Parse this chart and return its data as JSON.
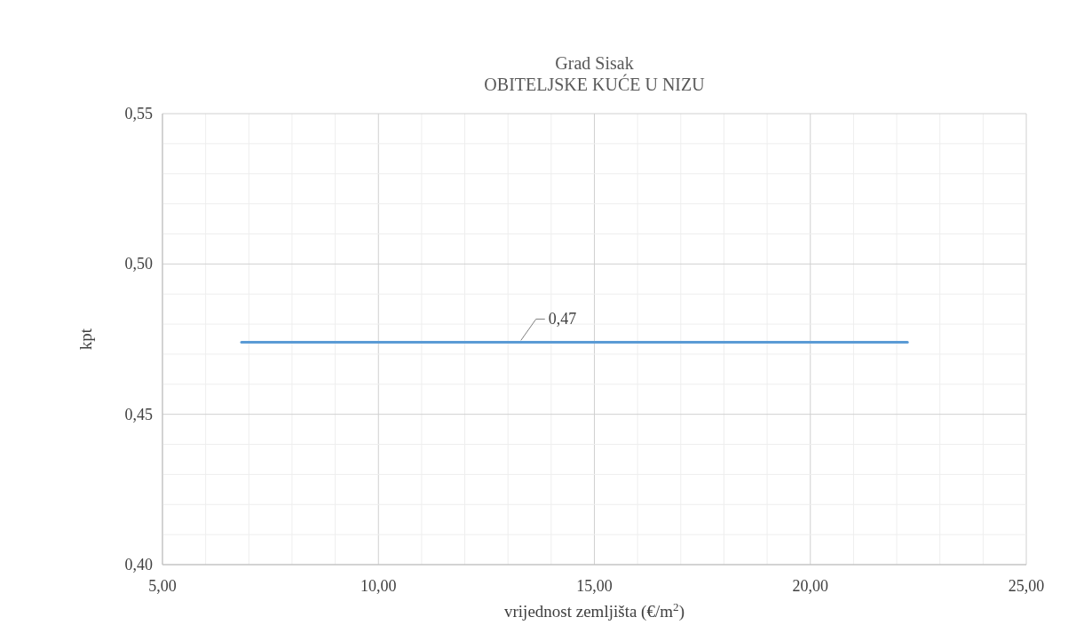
{
  "chart_data": {
    "type": "line",
    "title": "Grad Sisak",
    "subtitle": "OBITELJSKE KUĆE U NIZU",
    "xlabel": "vrijednost zemljišta (€/m$^{2}$)",
    "ylabel": "kpt",
    "series": [
      {
        "color": "#5b9bd5",
        "x": [
          6.83,
          13.3,
          22.25
        ],
        "values": [
          0.474,
          0.474,
          0.474
        ],
        "value_labels": [
          null,
          "0,47",
          null
        ]
      }
    ],
    "xlim": [
      5,
      25
    ],
    "ylim": [
      0.4,
      0.55
    ],
    "xticks": [
      {
        "value": 5,
        "label": "5,00"
      },
      {
        "value": 6,
        "label": null
      },
      {
        "value": 7,
        "label": null
      },
      {
        "value": 8,
        "label": null
      },
      {
        "value": 9,
        "label": null
      },
      {
        "value": 10,
        "label": "10,00"
      },
      {
        "value": 11,
        "label": null
      },
      {
        "value": 12,
        "label": null
      },
      {
        "value": 13,
        "label": null
      },
      {
        "value": 14,
        "label": null
      },
      {
        "value": 15,
        "label": "15,00"
      },
      {
        "value": 16,
        "label": null
      },
      {
        "value": 17,
        "label": null
      },
      {
        "value": 18,
        "label": null
      },
      {
        "value": 19,
        "label": null
      },
      {
        "value": 20,
        "label": "20,00"
      },
      {
        "value": 21,
        "label": null
      },
      {
        "value": 22,
        "label": null
      },
      {
        "value": 23,
        "label": null
      },
      {
        "value": 24,
        "label": null
      },
      {
        "value": 25,
        "label": "25,00"
      }
    ],
    "yticks": [
      {
        "value": 0.4,
        "label": "0,40"
      },
      {
        "value": 0.41,
        "label": null
      },
      {
        "value": 0.42,
        "label": null
      },
      {
        "value": 0.43,
        "label": null
      },
      {
        "value": 0.44,
        "label": null
      },
      {
        "value": 0.45,
        "label": "0,45"
      },
      {
        "value": 0.46,
        "label": null
      },
      {
        "value": 0.47,
        "label": null
      },
      {
        "value": 0.48,
        "label": null
      },
      {
        "value": 0.49,
        "label": null
      },
      {
        "value": 0.5,
        "label": "0,50"
      },
      {
        "value": 0.51,
        "label": null
      },
      {
        "value": 0.52,
        "label": null
      },
      {
        "value": 0.53,
        "label": null
      },
      {
        "value": 0.54,
        "label": null
      },
      {
        "value": 0.55,
        "label": "0,55"
      }
    ],
    "grid": true,
    "marker": "none",
    "line_style": "solid"
  }
}
